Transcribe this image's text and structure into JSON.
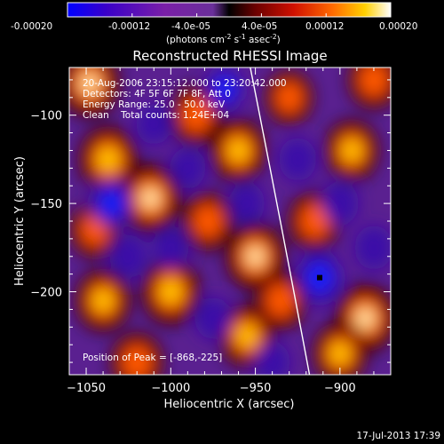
{
  "colorbar": {
    "ticks": [
      "-0.00020",
      "-0.00012",
      "-4.0e-05",
      "4.0e-05",
      "0.00012",
      "0.00020"
    ],
    "units_main": "(photons cm",
    "units_sup1": "-2",
    "units_mid": " s",
    "units_sup2": "-1",
    "units_end": " asec",
    "units_sup3": "-2",
    "units_close": ")",
    "colors": [
      "#0000ff",
      "#3a00c8",
      "#7a1fa8",
      "#6a2f9a",
      "#000000",
      "#6a0000",
      "#d01000",
      "#ff6a00",
      "#ffd000",
      "#ffffff"
    ]
  },
  "chart_data": {
    "type": "heatmap",
    "title": "Reconstructed RHESSI Image",
    "xlabel": "Heliocentric X (arcsec)",
    "ylabel": "Heliocentric Y (arcsec)",
    "xlim": [
      -1060,
      -870
    ],
    "ylim": [
      -247,
      -73
    ],
    "x_ticks": [
      -1050,
      -1000,
      -950,
      -900
    ],
    "x_tick_labels": [
      "−1050",
      "−1000",
      "−950",
      "−900"
    ],
    "y_ticks": [
      -100,
      -150,
      -200
    ],
    "y_tick_labels": [
      "−100",
      "−150",
      "−200"
    ],
    "peak": [
      -868,
      -225
    ],
    "info": [
      "20-Aug-2006 23:15:12.000 to 23:20:42.000",
      "Detectors: 4F 5F 6F 7F 8F, Att 0",
      "Energy Range: 25.0 - 50.0 keV",
      "Clean    Total counts: 1.24E+04"
    ],
    "peak_label": "Position of Peak = [-868,-225]",
    "blobs": [
      {
        "x": -1048,
        "y": -82,
        "v": 0.9
      },
      {
        "x": -1037,
        "y": -125,
        "v": 0.85
      },
      {
        "x": -1012,
        "y": -147,
        "v": 0.95
      },
      {
        "x": -985,
        "y": -100,
        "v": 0.6
      },
      {
        "x": -960,
        "y": -120,
        "v": 0.75
      },
      {
        "x": -978,
        "y": -160,
        "v": 0.55
      },
      {
        "x": -1000,
        "y": -200,
        "v": 0.85
      },
      {
        "x": -1040,
        "y": -205,
        "v": 0.7
      },
      {
        "x": -950,
        "y": -180,
        "v": 0.9
      },
      {
        "x": -935,
        "y": -205,
        "v": 0.55
      },
      {
        "x": -955,
        "y": -225,
        "v": 0.7
      },
      {
        "x": -915,
        "y": -160,
        "v": 0.6
      },
      {
        "x": -893,
        "y": -120,
        "v": 0.65
      },
      {
        "x": -880,
        "y": -80,
        "v": 0.55
      },
      {
        "x": -885,
        "y": -215,
        "v": 0.95
      },
      {
        "x": -900,
        "y": -235,
        "v": 0.65
      },
      {
        "x": -1020,
        "y": -240,
        "v": 0.6
      },
      {
        "x": -930,
        "y": -90,
        "v": 0.4
      },
      {
        "x": -1045,
        "y": -165,
        "v": 0.45
      },
      {
        "x": -968,
        "y": -85,
        "v": -0.6
      },
      {
        "x": -955,
        "y": -150,
        "v": -0.4
      },
      {
        "x": -912,
        "y": -192,
        "v": -1.0
      },
      {
        "x": -1035,
        "y": -150,
        "v": -0.75
      },
      {
        "x": -1000,
        "y": -175,
        "v": -0.4
      },
      {
        "x": -990,
        "y": -130,
        "v": -0.4
      },
      {
        "x": -1025,
        "y": -180,
        "v": -0.5
      },
      {
        "x": -900,
        "y": -150,
        "v": -0.5
      },
      {
        "x": -880,
        "y": -175,
        "v": -0.55
      },
      {
        "x": -925,
        "y": -125,
        "v": -0.5
      },
      {
        "x": -975,
        "y": -215,
        "v": -0.45
      },
      {
        "x": -1010,
        "y": -105,
        "v": -0.4
      },
      {
        "x": -940,
        "y": -240,
        "v": -0.4
      }
    ],
    "limb_curve": [
      [
        -953,
        -73
      ],
      [
        -935,
        -160
      ],
      [
        -918,
        -247
      ]
    ]
  },
  "footer": {
    "timestamp": "17-Jul-2013 17:39"
  }
}
